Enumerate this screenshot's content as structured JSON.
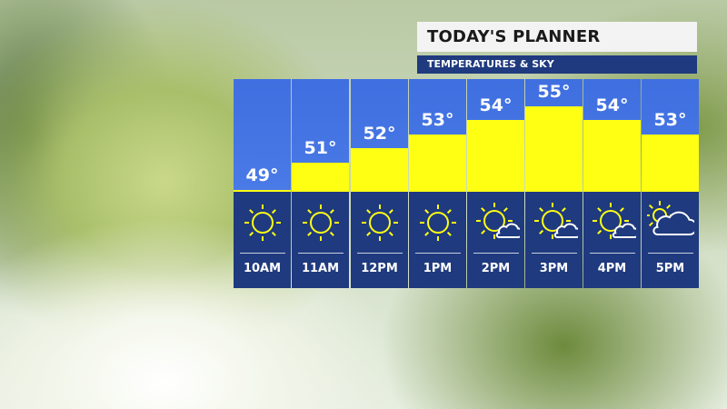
{
  "header": {
    "title": "TODAY'S PLANNER",
    "subtitle": "TEMPERATURES & SKY"
  },
  "colors": {
    "sky": "#4a7ae6",
    "bar": "#ffff14",
    "panel": "#1f3a7e",
    "icon": "#ffff14"
  },
  "chart_data": {
    "type": "bar",
    "categories": [
      "10AM",
      "11AM",
      "12PM",
      "1PM",
      "2PM",
      "3PM",
      "4PM",
      "5PM"
    ],
    "values": [
      49,
      51,
      52,
      53,
      54,
      55,
      54,
      53
    ],
    "labels": [
      "49°",
      "51°",
      "52°",
      "53°",
      "54°",
      "55°",
      "54°",
      "53°"
    ],
    "sky": [
      "sunny",
      "sunny",
      "sunny",
      "sunny",
      "mostly-sunny",
      "mostly-sunny",
      "mostly-sunny",
      "partly-cloudy"
    ],
    "unit": "°F"
  }
}
